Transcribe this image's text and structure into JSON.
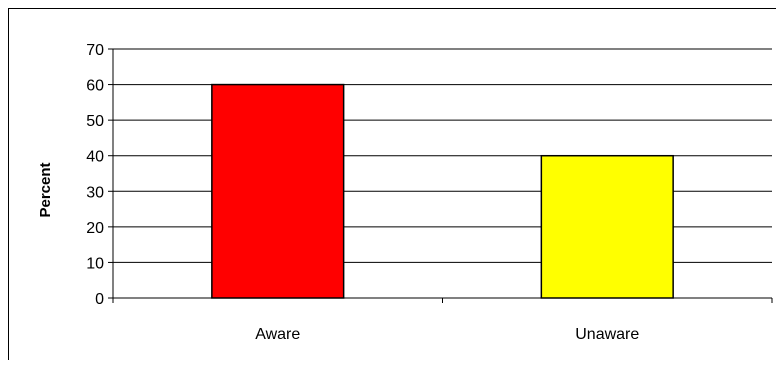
{
  "chart_data": {
    "type": "bar",
    "title": "",
    "xlabel": "",
    "ylabel": "Percent",
    "categories": [
      "Aware",
      "Unaware"
    ],
    "values": [
      60,
      40
    ],
    "ylim": [
      0,
      70
    ],
    "ytick_step": 10,
    "yticks": [
      "0",
      "10",
      "20",
      "30",
      "40",
      "50",
      "60",
      "70"
    ],
    "grid": true,
    "legend": "none",
    "colors": [
      "#ff0000",
      "#ffff00"
    ],
    "bar_edge_color": "#000000",
    "gridline_color": "#000000"
  }
}
